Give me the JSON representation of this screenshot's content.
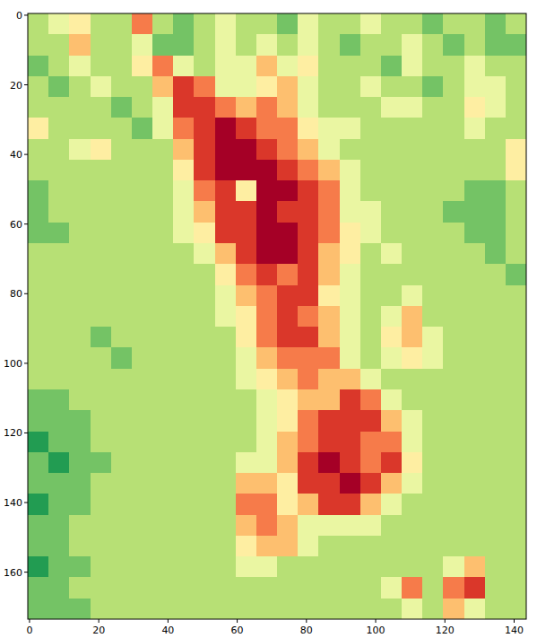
{
  "chart_data": {
    "type": "heatmap",
    "color": "RdYlGn_r",
    "xlim": [
      -0.5,
      143.5
    ],
    "ylim": [
      173.5,
      -0.5
    ],
    "xticks": [
      0,
      20,
      40,
      60,
      80,
      100,
      120,
      140
    ],
    "yticks": [
      0,
      20,
      40,
      60,
      80,
      100,
      120,
      140,
      160
    ],
    "color_range": [
      0,
      9
    ],
    "cells": [
      [
        3,
        4,
        5,
        3,
        3,
        7,
        3,
        2,
        3,
        4,
        3,
        3,
        2,
        4,
        3,
        3,
        4,
        3,
        3,
        2,
        3,
        3,
        2,
        3
      ],
      [
        3,
        3,
        6,
        3,
        3,
        4,
        2,
        2,
        3,
        4,
        3,
        4,
        3,
        4,
        3,
        2,
        3,
        3,
        4,
        3,
        2,
        3,
        2,
        2
      ],
      [
        2,
        3,
        4,
        3,
        3,
        5,
        7,
        4,
        3,
        4,
        4,
        6,
        4,
        5,
        3,
        3,
        3,
        2,
        4,
        3,
        3,
        4,
        3,
        3
      ],
      [
        3,
        2,
        3,
        4,
        3,
        3,
        6,
        8,
        7,
        4,
        4,
        5,
        6,
        4,
        3,
        3,
        4,
        3,
        3,
        2,
        3,
        4,
        4,
        3
      ],
      [
        3,
        3,
        3,
        3,
        2,
        3,
        4,
        8,
        8,
        7,
        6,
        7,
        6,
        4,
        3,
        3,
        3,
        4,
        4,
        3,
        3,
        5,
        4,
        3
      ],
      [
        5,
        3,
        3,
        3,
        3,
        2,
        4,
        7,
        8,
        9,
        8,
        7,
        7,
        5,
        4,
        4,
        3,
        3,
        3,
        3,
        3,
        4,
        3,
        3
      ],
      [
        3,
        3,
        4,
        5,
        3,
        3,
        3,
        6,
        8,
        9,
        9,
        8,
        7,
        6,
        4,
        3,
        3,
        3,
        3,
        3,
        3,
        3,
        3,
        5
      ],
      [
        3,
        3,
        3,
        3,
        3,
        3,
        3,
        5,
        8,
        9,
        9,
        9,
        8,
        7,
        6,
        4,
        3,
        3,
        3,
        3,
        3,
        3,
        3,
        5
      ],
      [
        2,
        3,
        3,
        3,
        3,
        3,
        3,
        4,
        7,
        8,
        5,
        9,
        9,
        8,
        7,
        4,
        3,
        3,
        3,
        3,
        3,
        2,
        2,
        3
      ],
      [
        2,
        3,
        3,
        3,
        3,
        3,
        3,
        4,
        6,
        8,
        8,
        9,
        8,
        8,
        7,
        4,
        4,
        3,
        3,
        3,
        2,
        2,
        2,
        3
      ],
      [
        2,
        2,
        3,
        3,
        3,
        3,
        3,
        4,
        5,
        8,
        8,
        9,
        9,
        8,
        7,
        5,
        4,
        3,
        3,
        3,
        3,
        2,
        2,
        3
      ],
      [
        3,
        3,
        3,
        3,
        3,
        3,
        3,
        3,
        4,
        6,
        8,
        9,
        9,
        8,
        6,
        5,
        3,
        4,
        3,
        3,
        3,
        3,
        2,
        3
      ],
      [
        3,
        3,
        3,
        3,
        3,
        3,
        3,
        3,
        3,
        5,
        7,
        8,
        7,
        8,
        6,
        4,
        3,
        3,
        3,
        3,
        3,
        3,
        3,
        2
      ],
      [
        3,
        3,
        3,
        3,
        3,
        3,
        3,
        3,
        3,
        4,
        6,
        7,
        8,
        8,
        5,
        4,
        3,
        3,
        4,
        3,
        3,
        3,
        3,
        3
      ],
      [
        3,
        3,
        3,
        3,
        3,
        3,
        3,
        3,
        3,
        4,
        5,
        7,
        8,
        7,
        6,
        4,
        3,
        4,
        6,
        3,
        3,
        3,
        3,
        3
      ],
      [
        3,
        3,
        3,
        2,
        3,
        3,
        3,
        3,
        3,
        3,
        5,
        7,
        8,
        8,
        6,
        4,
        3,
        5,
        6,
        4,
        3,
        3,
        3,
        3
      ],
      [
        3,
        3,
        3,
        3,
        2,
        3,
        3,
        3,
        3,
        3,
        4,
        6,
        7,
        7,
        7,
        4,
        3,
        4,
        5,
        4,
        3,
        3,
        3,
        3
      ],
      [
        3,
        3,
        3,
        3,
        3,
        3,
        3,
        3,
        3,
        3,
        4,
        5,
        6,
        7,
        6,
        6,
        4,
        3,
        3,
        3,
        3,
        3,
        3,
        3
      ],
      [
        2,
        2,
        3,
        3,
        3,
        3,
        3,
        3,
        3,
        3,
        3,
        4,
        5,
        6,
        6,
        8,
        7,
        4,
        3,
        3,
        3,
        3,
        3,
        3
      ],
      [
        2,
        2,
        2,
        3,
        3,
        3,
        3,
        3,
        3,
        3,
        3,
        4,
        5,
        7,
        8,
        8,
        8,
        6,
        4,
        3,
        3,
        3,
        3,
        3
      ],
      [
        1,
        2,
        2,
        3,
        3,
        3,
        3,
        3,
        3,
        3,
        3,
        4,
        6,
        7,
        8,
        8,
        7,
        7,
        4,
        3,
        3,
        3,
        3,
        3
      ],
      [
        2,
        1,
        2,
        2,
        3,
        3,
        3,
        3,
        3,
        3,
        4,
        4,
        6,
        8,
        9,
        8,
        7,
        8,
        5,
        3,
        3,
        3,
        3,
        3
      ],
      [
        2,
        2,
        2,
        3,
        3,
        3,
        3,
        3,
        3,
        3,
        6,
        6,
        5,
        8,
        8,
        9,
        8,
        6,
        4,
        3,
        3,
        3,
        3,
        3
      ],
      [
        1,
        2,
        2,
        3,
        3,
        3,
        3,
        3,
        3,
        3,
        7,
        7,
        5,
        6,
        8,
        8,
        6,
        4,
        3,
        3,
        3,
        3,
        3,
        3
      ],
      [
        2,
        2,
        3,
        3,
        3,
        3,
        3,
        3,
        3,
        3,
        6,
        7,
        6,
        4,
        4,
        4,
        4,
        3,
        3,
        3,
        3,
        3,
        3,
        3
      ],
      [
        2,
        2,
        3,
        3,
        3,
        3,
        3,
        3,
        3,
        3,
        5,
        6,
        6,
        4,
        3,
        3,
        3,
        3,
        3,
        3,
        3,
        3,
        3,
        3
      ],
      [
        1,
        2,
        2,
        3,
        3,
        3,
        3,
        3,
        3,
        3,
        4,
        4,
        3,
        3,
        3,
        3,
        3,
        3,
        3,
        3,
        4,
        6,
        3,
        3
      ],
      [
        2,
        2,
        3,
        3,
        3,
        3,
        3,
        3,
        3,
        3,
        3,
        3,
        3,
        3,
        3,
        3,
        3,
        4,
        7,
        3,
        7,
        8,
        3,
        3
      ],
      [
        2,
        2,
        2,
        3,
        3,
        3,
        3,
        3,
        3,
        3,
        3,
        3,
        3,
        3,
        3,
        3,
        3,
        3,
        4,
        3,
        6,
        4,
        3,
        3
      ]
    ]
  }
}
